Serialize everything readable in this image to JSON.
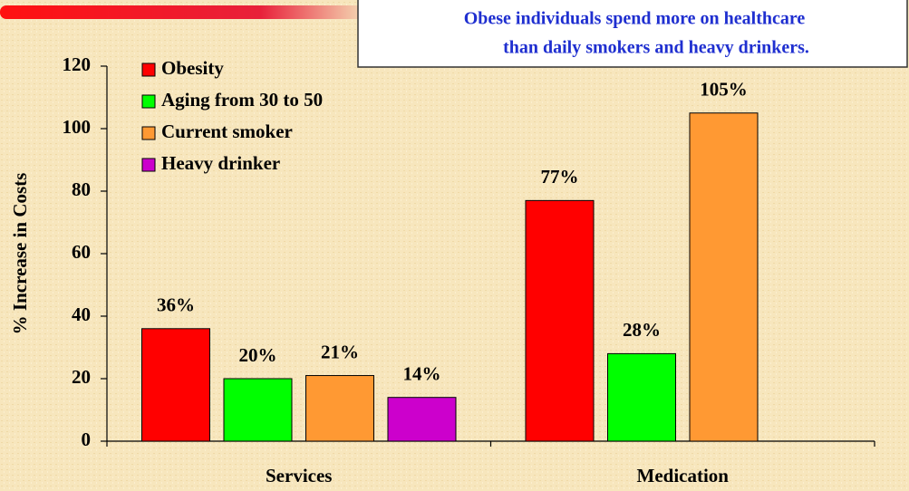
{
  "chart_data": {
    "type": "bar",
    "annotation": [
      "Obese individuals spend more on healthcare",
      "than daily smokers and heavy drinkers."
    ],
    "y_label": "% Increase in Costs",
    "categories": [
      "Services",
      "Medication"
    ],
    "series": [
      {
        "name": "Obesity",
        "color": "#ff0000",
        "values": [
          36,
          77
        ],
        "value_labels": [
          "36%",
          "77%"
        ]
      },
      {
        "name": "Aging from 30 to 50",
        "color": "#00ff00",
        "values": [
          20,
          28
        ],
        "value_labels": [
          "20%",
          "28%"
        ]
      },
      {
        "name": "Current smoker",
        "color": "#ff9933",
        "values": [
          21,
          105
        ],
        "value_labels": [
          "21%",
          "105%"
        ]
      },
      {
        "name": "Heavy drinker",
        "color": "#cc00cc",
        "values": [
          14,
          null
        ],
        "value_labels": [
          "14%",
          null
        ]
      }
    ],
    "ylim": [
      0,
      120
    ],
    "yticks": [
      0,
      20,
      40,
      60,
      80,
      100,
      120
    ],
    "legend": "upper left"
  }
}
